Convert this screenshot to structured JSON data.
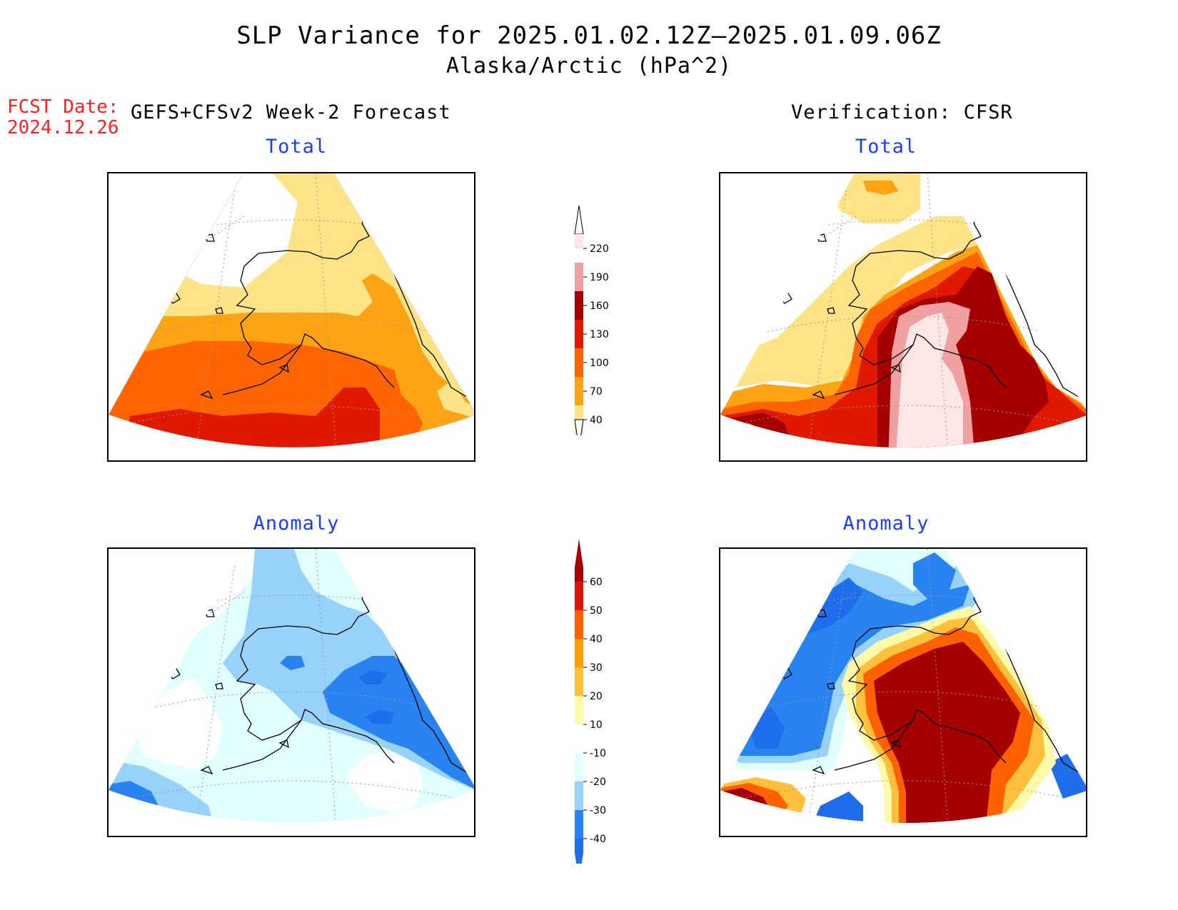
{
  "title": {
    "line1": "SLP Variance for 2025.01.02.12Z–2025.01.09.06Z",
    "line2": "Alaska/Arctic (hPa^2)"
  },
  "forecast_date": {
    "label": "FCST Date:",
    "value": "2024.12.26"
  },
  "columns": {
    "left": "GEFS+CFSv2 Week-2 Forecast",
    "right": "Verification: CFSR"
  },
  "panels": {
    "total_label": "Total",
    "anomaly_label": "Anomaly"
  },
  "colorbars": {
    "total": {
      "levels": [
        "40",
        "70",
        "100",
        "130",
        "160",
        "190",
        "220"
      ],
      "colors": [
        "#fee486",
        "#fea313",
        "#fe6400",
        "#e11800",
        "#a50000",
        "#f0a0a0",
        "#fde6e6"
      ]
    },
    "anomaly": {
      "levels": [
        "-40",
        "-30",
        "-20",
        "-10",
        "10",
        "20",
        "30",
        "40",
        "50",
        "60"
      ],
      "colors": [
        "#1e6eeb",
        "#2882f0",
        "#96d2fa",
        "#e1ffff",
        "#ffffff",
        "#fffaaa",
        "#ffc03c",
        "#ffa000",
        "#ff6000",
        "#e11400",
        "#a50000"
      ]
    }
  }
}
